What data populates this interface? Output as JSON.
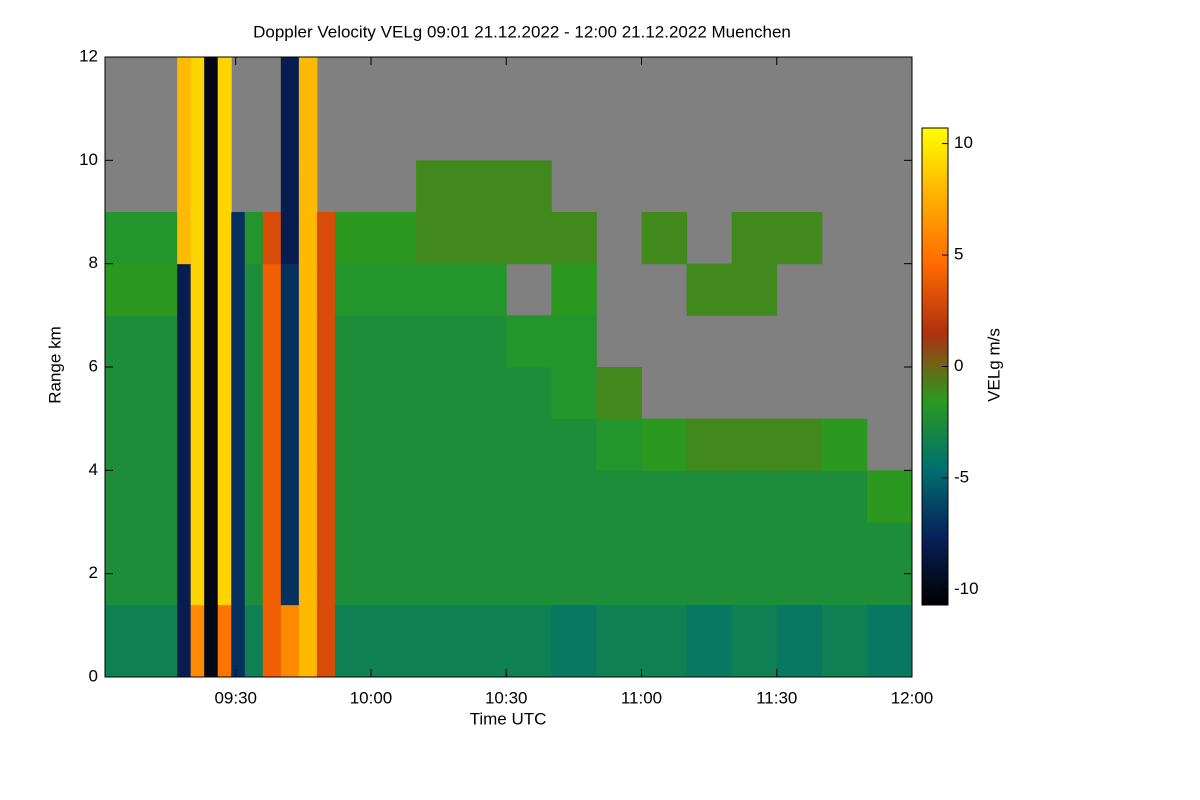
{
  "chart_data": {
    "type": "heatmap",
    "title": "Doppler Velocity VELg   09:01 21.12.2022 - 12:00 21.12.2022 Muenchen",
    "xlabel": "Time UTC",
    "ylabel": "Range km",
    "zlabel": "VELg m/s",
    "xlim": [
      541,
      720
    ],
    "xticks": [
      {
        "value": 570,
        "label": "09:30"
      },
      {
        "value": 600,
        "label": "10:00"
      },
      {
        "value": 630,
        "label": "10:30"
      },
      {
        "value": 660,
        "label": "11:00"
      },
      {
        "value": 690,
        "label": "11:30"
      },
      {
        "value": 720,
        "label": "12:00"
      }
    ],
    "ylim": [
      0,
      12
    ],
    "yticks": [
      0,
      2,
      4,
      6,
      8,
      10,
      12
    ],
    "zlim": [
      -10.7,
      10.7
    ],
    "zticks": [
      10,
      5,
      0,
      -5,
      -10
    ],
    "colorscale": [
      "#000000",
      "#08205a",
      "#007070",
      "#2a9a20",
      "#b03010",
      "#ff6a00",
      "#ffb000",
      "#ffff00"
    ],
    "missing_color": "#808080",
    "xbins": [
      541,
      557,
      560,
      563,
      566,
      569,
      572,
      576,
      580,
      584,
      588,
      592,
      600,
      610,
      620,
      630,
      640,
      650,
      660,
      670,
      680,
      690,
      700,
      710,
      720
    ],
    "ybins": [
      0,
      1.4,
      2,
      3,
      4,
      5,
      6,
      7,
      8,
      9,
      10,
      11,
      12
    ],
    "z": [
      [
        -3.5,
        -8,
        6,
        -10,
        5,
        -7,
        -3.5,
        4,
        6,
        8,
        3,
        -3.5,
        -3.5,
        -3.5,
        -3.5,
        -3.5,
        -4,
        -3.5,
        -3.5,
        -4,
        -3.5,
        -4,
        -3.5,
        -4
      ],
      [
        -2.5,
        -8,
        9,
        -10,
        9,
        -7,
        -2.5,
        4,
        -7,
        8,
        3,
        -2.5,
        -2.5,
        -2.5,
        -2.5,
        -2.5,
        -2.5,
        -2.5,
        -2.5,
        -2.5,
        -2.5,
        -2.5,
        -2.5,
        -2.5
      ],
      [
        -2.5,
        -8,
        9,
        -10,
        9,
        -7,
        -2.5,
        4,
        -7,
        8,
        3,
        -2.5,
        -2.5,
        -2.5,
        -2.5,
        -2.5,
        -2.5,
        -2.5,
        -2.5,
        -2.5,
        -2.5,
        -2.5,
        -2.5,
        -2.5
      ],
      [
        -2.5,
        -8,
        9,
        -10,
        9,
        -7,
        -2.5,
        4,
        -7,
        8,
        3,
        -2.5,
        -2.5,
        -2.5,
        -2.5,
        -2.5,
        -2.5,
        -2.5,
        -2.5,
        -2.5,
        -2.5,
        -2.5,
        -2.5,
        -1.5
      ],
      [
        -2.5,
        -8,
        9,
        -10,
        9,
        -7,
        -2.5,
        4,
        -7,
        8,
        3,
        -2.5,
        -2.5,
        -2.5,
        -2.5,
        -2.5,
        -2.5,
        -2,
        -1.5,
        -1,
        -1,
        -1,
        -1.5,
        null
      ],
      [
        -2.5,
        -8,
        9,
        -10,
        9,
        -7,
        -2.5,
        4,
        -7,
        8,
        3,
        -2.5,
        -2.5,
        -2.5,
        -2.5,
        -2.5,
        -2,
        -1,
        null,
        null,
        null,
        null,
        null,
        null
      ],
      [
        -2.5,
        -8,
        9,
        -10,
        9,
        -7,
        -2.5,
        4,
        -7,
        8,
        3,
        -2.5,
        -2.5,
        -2.5,
        -2.5,
        -2,
        -2,
        null,
        null,
        null,
        null,
        null,
        null,
        null
      ],
      [
        -1.5,
        -8,
        9,
        -10,
        9,
        -7,
        -2.5,
        4,
        -7,
        8,
        3,
        -2,
        -2,
        -2,
        -2,
        null,
        -1.5,
        null,
        null,
        -1,
        -1,
        null,
        null,
        null
      ],
      [
        -2,
        8,
        9,
        -10,
        9,
        -7,
        -2,
        3,
        -8,
        8,
        3,
        -1.5,
        -1.5,
        -1,
        -1,
        -1,
        -1,
        null,
        -1,
        null,
        -1,
        -1,
        null,
        null
      ],
      [
        null,
        8,
        9,
        -10,
        9,
        null,
        null,
        null,
        -8,
        8,
        null,
        null,
        null,
        -1,
        -1,
        -1,
        null,
        null,
        null,
        null,
        null,
        null,
        null,
        null
      ],
      [
        null,
        8,
        9,
        -10,
        9,
        null,
        null,
        null,
        -8,
        8,
        null,
        null,
        null,
        null,
        null,
        null,
        null,
        null,
        null,
        null,
        null,
        null,
        null,
        null
      ],
      [
        null,
        8,
        9,
        -10,
        9,
        null,
        null,
        null,
        -8,
        8,
        null,
        null,
        null,
        null,
        null,
        null,
        null,
        null,
        null,
        null,
        null,
        null,
        null,
        null
      ]
    ]
  }
}
